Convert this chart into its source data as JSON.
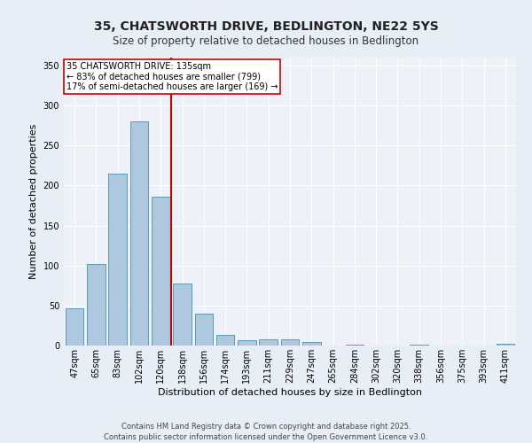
{
  "title": "35, CHATSWORTH DRIVE, BEDLINGTON, NE22 5YS",
  "subtitle": "Size of property relative to detached houses in Bedlington",
  "xlabel": "Distribution of detached houses by size in Bedlington",
  "ylabel": "Number of detached properties",
  "categories": [
    "47sqm",
    "65sqm",
    "83sqm",
    "102sqm",
    "120sqm",
    "138sqm",
    "156sqm",
    "174sqm",
    "193sqm",
    "211sqm",
    "229sqm",
    "247sqm",
    "265sqm",
    "284sqm",
    "302sqm",
    "320sqm",
    "338sqm",
    "356sqm",
    "375sqm",
    "393sqm",
    "411sqm"
  ],
  "values": [
    47,
    102,
    215,
    280,
    186,
    77,
    40,
    13,
    7,
    8,
    8,
    4,
    0,
    1,
    0,
    0,
    1,
    0,
    0,
    0,
    2
  ],
  "bar_color": "#aec8e0",
  "bar_edgecolor": "#5a9ab5",
  "vline_color": "#cc0000",
  "vline_pos": 4.5,
  "annotation_title": "35 CHATSWORTH DRIVE: 135sqm",
  "annotation_line1": "← 83% of detached houses are smaller (799)",
  "annotation_line2": "17% of semi-detached houses are larger (169) →",
  "annotation_box_edgecolor": "#cc0000",
  "ylim": [
    0,
    360
  ],
  "yticks": [
    0,
    50,
    100,
    150,
    200,
    250,
    300,
    350
  ],
  "footer": "Contains HM Land Registry data © Crown copyright and database right 2025.\nContains public sector information licensed under the Open Government Licence v3.0.",
  "bg_color": "#e8eef5",
  "plot_bg_color": "#eef2f8",
  "title_fontsize": 10,
  "subtitle_fontsize": 8.5,
  "xlabel_fontsize": 8,
  "ylabel_fontsize": 8,
  "tick_fontsize": 7,
  "footer_fontsize": 6,
  "annotation_fontsize": 7
}
